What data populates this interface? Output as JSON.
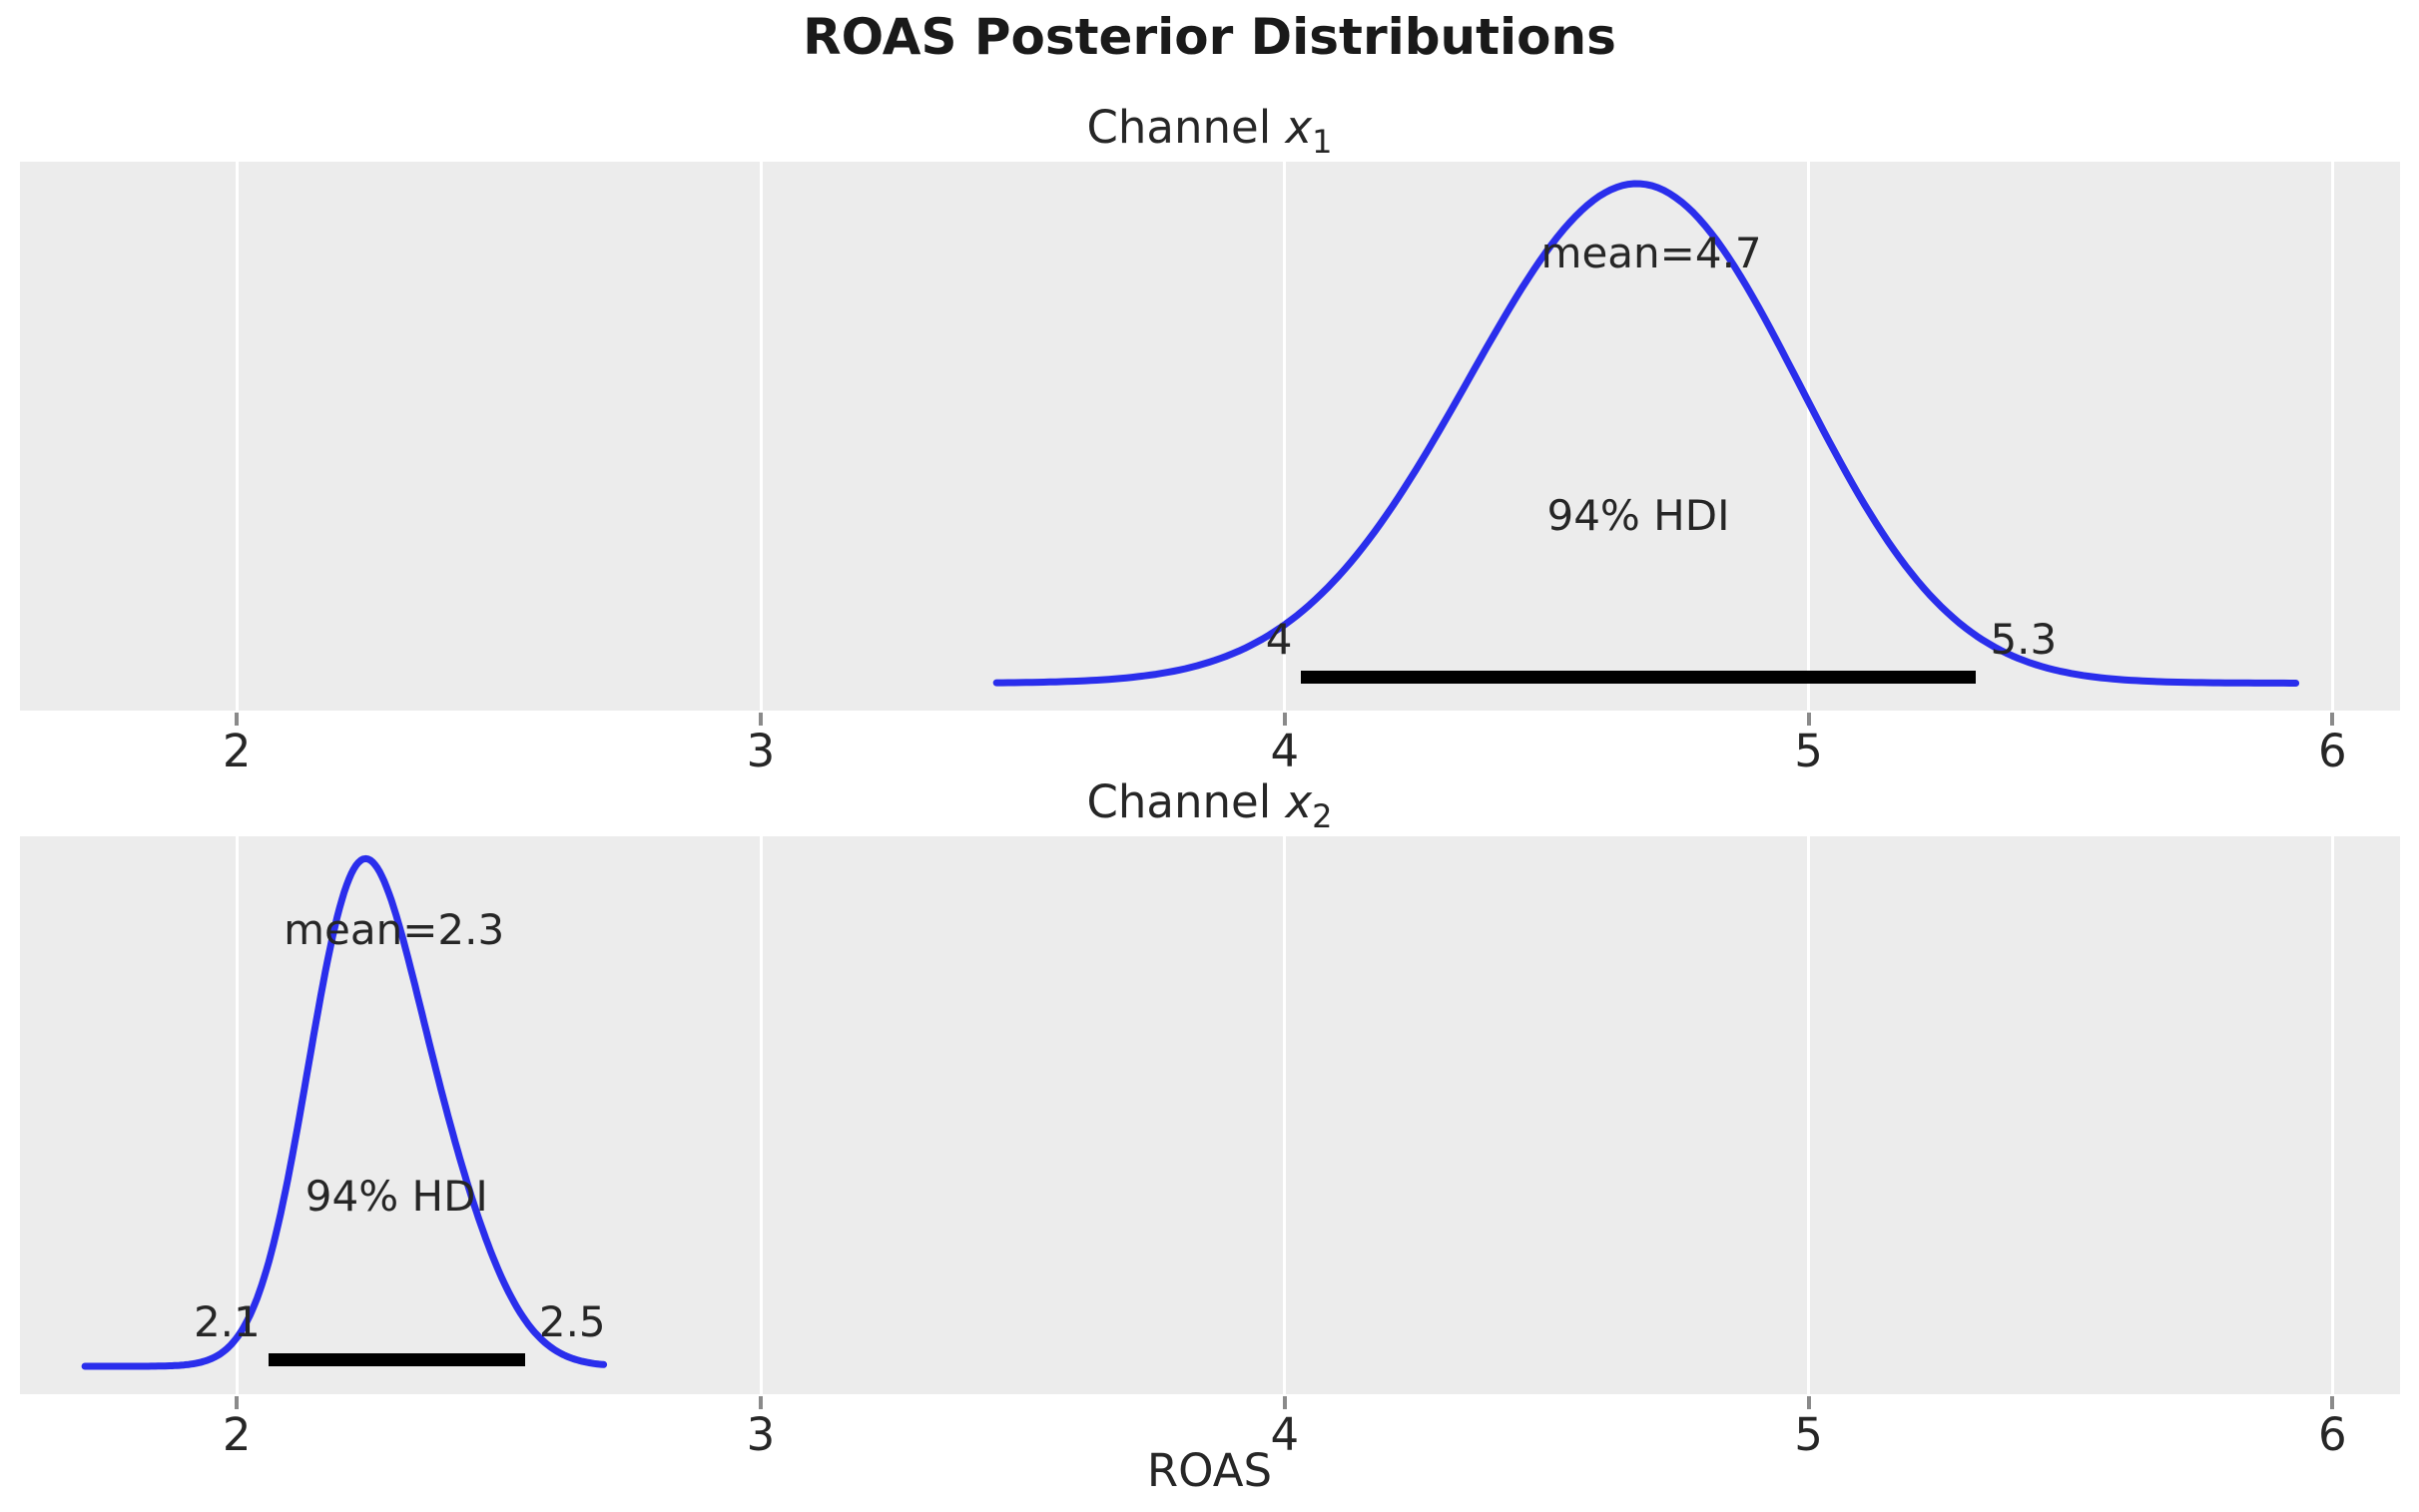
{
  "figure": {
    "title": "ROAS Posterior Distributions"
  },
  "colors": {
    "background": "#ffffff",
    "panel_bg": "#ececec",
    "curve": "#2a2eec",
    "hdi_bar": "#000000",
    "gridline": "#ffffff",
    "tick_mark": "#8a8a8a",
    "text": "#262626"
  },
  "chart_data": [
    {
      "type": "line",
      "subtype": "kde-posterior",
      "title": {
        "prefix": "Channel ",
        "var": "x",
        "sub": "1"
      },
      "xlabel": "",
      "mean": 4.7,
      "mean_label": "mean=4.7",
      "hdi": {
        "label": "94% HDI",
        "lower": 4.03,
        "upper": 5.32,
        "lower_label": "4",
        "upper_label": "5.3"
      },
      "curve": {
        "x_start": 3.45,
        "x_end": 5.93,
        "components": [
          {
            "w": 1.0,
            "mu": 4.55,
            "sigma": 0.3
          },
          {
            "w": 0.85,
            "mu": 4.79,
            "sigma": 0.27
          }
        ]
      },
      "xticks": [
        2,
        3,
        4,
        5,
        6
      ],
      "xtick_labels": [
        "2",
        "3",
        "4",
        "5",
        "6"
      ],
      "xlim": [
        1.586,
        6.129
      ],
      "grid": true,
      "legend": "none"
    },
    {
      "type": "line",
      "subtype": "kde-posterior",
      "title": {
        "prefix": "Channel ",
        "var": "x",
        "sub": "2"
      },
      "xlabel": "ROAS",
      "mean": 2.3,
      "mean_label": "mean=2.3",
      "hdi": {
        "label": "94% HDI",
        "lower": 2.06,
        "upper": 2.55,
        "lower_label": "2.1",
        "upper_label": "2.5"
      },
      "curve": {
        "x_start": 1.71,
        "x_end": 2.7,
        "components": [
          {
            "w": 1.0,
            "mu": 2.22,
            "sigma": 0.095
          },
          {
            "w": 0.5,
            "mu": 2.36,
            "sigma": 0.11
          }
        ]
      },
      "xticks": [
        2,
        3,
        4,
        5,
        6
      ],
      "xtick_labels": [
        "2",
        "3",
        "4",
        "5",
        "6"
      ],
      "xlim": [
        1.586,
        6.129
      ],
      "grid": true,
      "legend": "none"
    }
  ]
}
